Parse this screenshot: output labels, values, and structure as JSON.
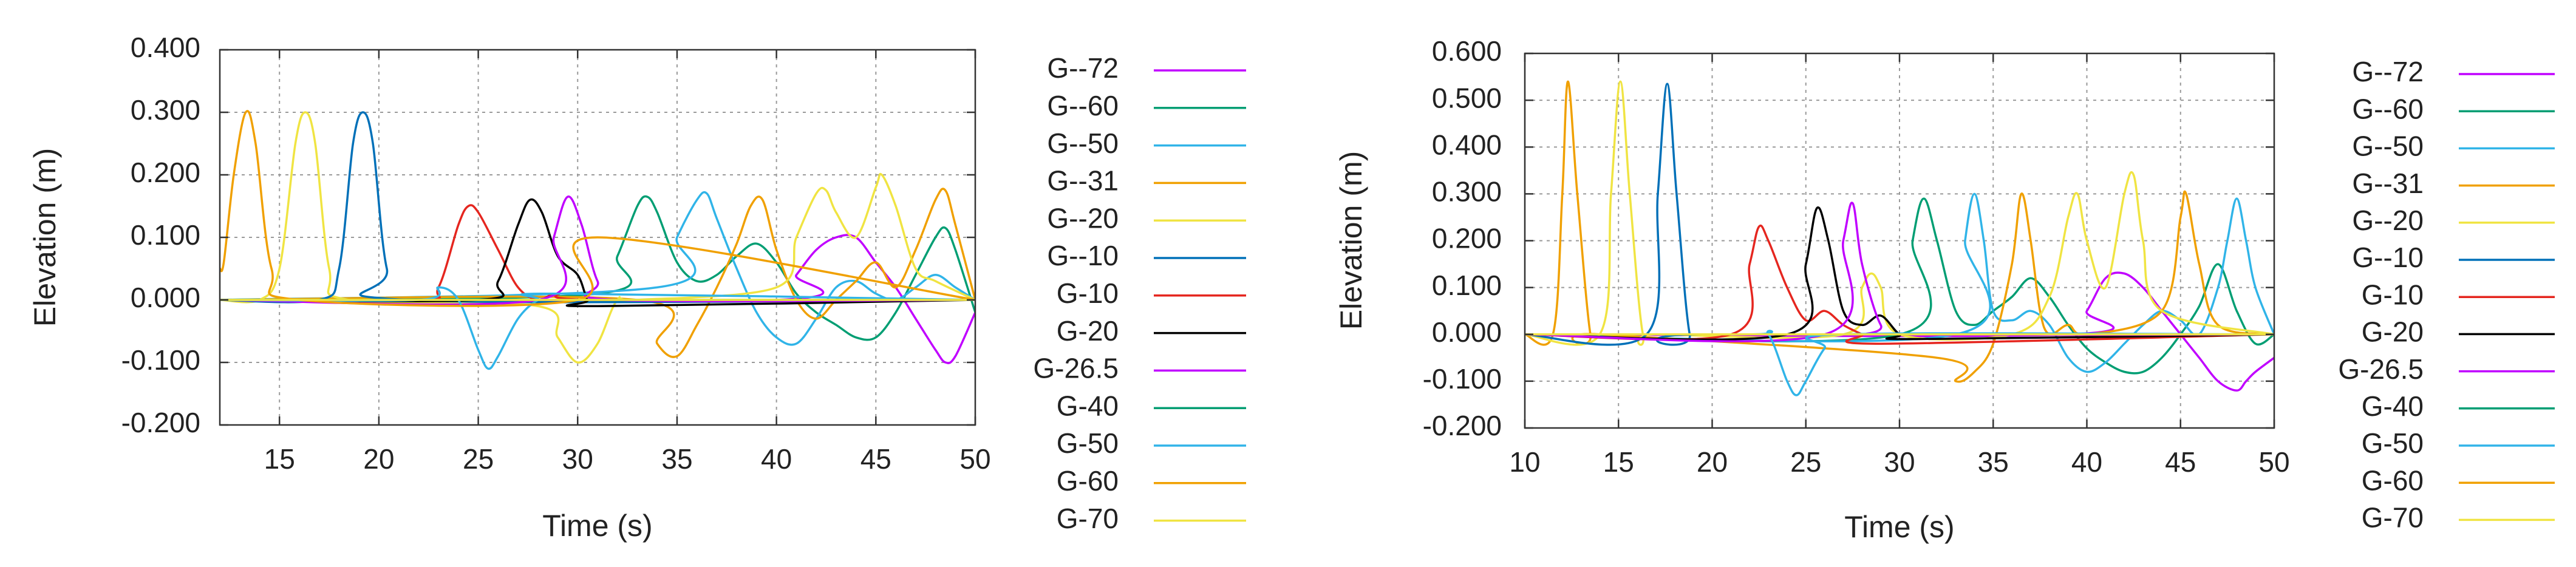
{
  "colors": [
    "#c000ff",
    "#009e73",
    "#30b4e8",
    "#f0a000",
    "#f0e442",
    "#0070b8",
    "#e5261f",
    "#000000"
  ],
  "chart_data": [
    {
      "type": "line",
      "title": "",
      "xlabel": "Time (s)",
      "ylabel": "Elevation (m)",
      "xlim": [
        12,
        50
      ],
      "ylim": [
        -0.2,
        0.4
      ],
      "xticks": [
        15,
        20,
        25,
        30,
        35,
        40,
        45,
        50
      ],
      "xtick_labels": [
        "15",
        "20",
        "25",
        "30",
        "35",
        "40",
        "45",
        "50"
      ],
      "yticks": [
        -0.2,
        -0.1,
        0.0,
        0.1,
        0.2,
        0.3,
        0.4
      ],
      "ytick_labels": [
        "-0.200",
        "-0.100",
        "0.000",
        "0.100",
        "0.200",
        "0.300",
        "0.400"
      ],
      "grid": true,
      "legend_position": "right",
      "series": [
        {
          "name": "G--72",
          "color": "#c000ff",
          "x": [
            12,
            40,
            41,
            42,
            43,
            44,
            45,
            46,
            47,
            48,
            48.5,
            49,
            50
          ],
          "y": [
            0,
            0.0,
            0.04,
            0.08,
            0.1,
            0.1,
            0.06,
            0.02,
            -0.03,
            -0.08,
            -0.1,
            -0.09,
            -0.02
          ]
        },
        {
          "name": "G--60",
          "color": "#009e73",
          "x": [
            12,
            31,
            32,
            33,
            33.5,
            34,
            35,
            36,
            37,
            38,
            39,
            40,
            41,
            42,
            43,
            44,
            45,
            46,
            47,
            48,
            48.5,
            49,
            50
          ],
          "y": [
            0,
            0.01,
            0.07,
            0.15,
            0.165,
            0.14,
            0.06,
            0.03,
            0.04,
            0.07,
            0.09,
            0.06,
            0.01,
            -0.02,
            -0.04,
            -0.06,
            -0.06,
            -0.02,
            0.04,
            0.1,
            0.115,
            0.08,
            -0.02
          ]
        },
        {
          "name": "G--50",
          "color": "#30b4e8",
          "x": [
            12,
            34,
            35,
            36,
            36.5,
            37,
            38,
            39,
            40,
            41,
            42,
            43,
            44,
            45,
            46,
            47,
            48,
            49,
            50
          ],
          "y": [
            0,
            0.02,
            0.1,
            0.16,
            0.17,
            0.13,
            0.05,
            -0.02,
            -0.06,
            -0.07,
            -0.03,
            0.02,
            0.03,
            0.01,
            0.0,
            0.02,
            0.04,
            0.02,
            0.0
          ]
        },
        {
          "name": "G--31",
          "color": "#f0a000",
          "x": [
            12,
            33,
            34,
            35,
            36,
            37,
            38,
            38.7,
            39.3,
            40,
            41,
            42,
            43,
            44,
            45,
            46,
            47,
            48,
            48.5,
            49,
            50
          ],
          "y": [
            0,
            0.0,
            -0.07,
            -0.09,
            -0.04,
            0.02,
            0.09,
            0.15,
            0.16,
            0.08,
            0.0,
            -0.03,
            0.0,
            0.03,
            0.06,
            0.02,
            0.08,
            0.16,
            0.175,
            0.12,
            0.0
          ]
        },
        {
          "name": "G--20",
          "color": "#f0e442",
          "x": [
            12,
            14,
            15,
            15.8,
            16.3,
            16.8,
            17.5,
            18.5,
            28,
            29,
            30,
            31,
            32,
            33,
            40,
            41,
            42,
            42.5,
            43,
            44,
            45,
            45.3,
            46,
            47,
            48,
            50
          ],
          "y": [
            0,
            0.0,
            0.05,
            0.25,
            0.3,
            0.25,
            0.05,
            0.0,
            -0.01,
            -0.06,
            -0.1,
            -0.07,
            0.0,
            0.0,
            0.02,
            0.1,
            0.17,
            0.175,
            0.14,
            0.1,
            0.18,
            0.2,
            0.15,
            0.05,
            0.03,
            0.0
          ]
        },
        {
          "name": "G--10",
          "color": "#0070b8",
          "x": [
            12,
            17,
            18,
            18.7,
            19.2,
            19.7,
            20.4,
            21.5,
            50
          ],
          "y": [
            0,
            0.0,
            0.05,
            0.25,
            0.3,
            0.25,
            0.05,
            0.0,
            0.0
          ]
        },
        {
          "name": "G-10",
          "color": "#e5261f",
          "x": [
            12,
            22,
            23,
            24,
            24.5,
            25,
            26,
            27,
            28,
            29,
            31,
            50
          ],
          "y": [
            0,
            0.0,
            0.02,
            0.12,
            0.15,
            0.14,
            0.08,
            0.02,
            0.0,
            0.01,
            0.0,
            0.0
          ]
        },
        {
          "name": "G-20",
          "color": "#000000",
          "x": [
            12,
            25,
            26,
            27,
            27.6,
            28.2,
            29,
            30,
            30.5,
            31,
            50
          ],
          "y": [
            0,
            0.0,
            0.03,
            0.12,
            0.16,
            0.14,
            0.07,
            0.04,
            0.0,
            -0.01,
            0.0
          ]
        },
        {
          "name": "G-26.5",
          "color": "#c000ff",
          "x": [
            12,
            28,
            28.8,
            29.5,
            30.2,
            31,
            32,
            50
          ],
          "y": [
            0,
            0.0,
            0.1,
            0.165,
            0.12,
            0.03,
            0.0,
            0.0
          ]
        },
        {
          "name": "G-40",
          "color": "#009e73",
          "x": [
            12,
            34,
            50
          ],
          "y": [
            0,
            0.0,
            0.0
          ]
        },
        {
          "name": "G-50",
          "color": "#30b4e8",
          "x": [
            12,
            22,
            23,
            24,
            25,
            25.5,
            26,
            27,
            28,
            29,
            50
          ],
          "y": [
            0,
            0.0,
            0.02,
            0.0,
            -0.08,
            -0.11,
            -0.09,
            -0.03,
            0.0,
            0.01,
            0.0
          ]
        },
        {
          "name": "G-60",
          "color": "#f0a000",
          "x": [
            12,
            12.2,
            12.7,
            13.3,
            13.8,
            14.6,
            16,
            30,
            31,
            50
          ],
          "y": [
            0.05,
            0.06,
            0.2,
            0.3,
            0.25,
            0.05,
            0.0,
            0.0,
            0.1,
            0.0
          ]
        },
        {
          "name": "G-70",
          "color": "#f0e442",
          "x": [
            12,
            50
          ],
          "y": [
            0,
            0.0
          ]
        }
      ]
    },
    {
      "type": "line",
      "title": "",
      "xlabel": "Time (s)",
      "ylabel": "Elevation (m)",
      "xlim": [
        10,
        50
      ],
      "ylim": [
        -0.2,
        0.6
      ],
      "xticks": [
        10,
        15,
        20,
        25,
        30,
        35,
        40,
        45,
        50
      ],
      "xtick_labels": [
        "10",
        "15",
        "20",
        "25",
        "30",
        "35",
        "40",
        "45",
        "50"
      ],
      "yticks": [
        -0.2,
        -0.1,
        0.0,
        0.1,
        0.2,
        0.3,
        0.4,
        0.5,
        0.6
      ],
      "ytick_labels": [
        "-0.200",
        "-0.100",
        "0.000",
        "0.100",
        "0.200",
        "0.300",
        "0.400",
        "0.500",
        "0.600"
      ],
      "grid": true,
      "legend_position": "right",
      "series": [
        {
          "name": "G--72",
          "color": "#c000ff",
          "x": [
            10,
            39,
            40,
            41,
            42,
            43,
            44,
            45,
            46,
            47,
            48,
            48.5,
            49,
            50
          ],
          "y": [
            0,
            0.0,
            0.05,
            0.12,
            0.13,
            0.1,
            0.05,
            0.0,
            -0.05,
            -0.1,
            -0.12,
            -0.1,
            -0.08,
            -0.05
          ]
        },
        {
          "name": "G--60",
          "color": "#009e73",
          "x": [
            10,
            30,
            30.7,
            31.3,
            32,
            33,
            34,
            35,
            36,
            37,
            38,
            39,
            40,
            41,
            42,
            43,
            44,
            45,
            46,
            47,
            48,
            49,
            50
          ],
          "y": [
            0,
            0.0,
            0.2,
            0.29,
            0.2,
            0.05,
            0.02,
            0.05,
            0.08,
            0.12,
            0.08,
            0.02,
            -0.03,
            -0.06,
            -0.08,
            -0.08,
            -0.05,
            0.0,
            0.06,
            0.15,
            0.05,
            -0.02,
            0.0
          ]
        },
        {
          "name": "G--50",
          "color": "#30b4e8",
          "x": [
            10,
            33,
            33.5,
            34,
            34.5,
            35,
            36,
            37,
            38,
            39,
            40,
            41,
            42,
            43,
            44,
            45,
            46,
            47,
            47.5,
            48,
            48.5,
            49,
            50
          ],
          "y": [
            0,
            0.0,
            0.2,
            0.3,
            0.2,
            0.05,
            0.03,
            0.05,
            0.02,
            -0.05,
            -0.08,
            -0.06,
            -0.02,
            0.02,
            0.05,
            0.03,
            0.0,
            0.1,
            0.2,
            0.29,
            0.2,
            0.1,
            0.0
          ]
        },
        {
          "name": "G--31",
          "color": "#f0a000",
          "x": [
            10,
            11.5,
            12,
            12.3,
            12.8,
            13.5,
            14,
            32,
            33,
            34,
            35,
            36,
            36.5,
            37,
            37.5,
            38,
            39,
            40,
            44,
            45,
            45.3,
            46,
            47,
            50
          ],
          "y": [
            0,
            0.0,
            0.3,
            0.54,
            0.3,
            0.0,
            0.0,
            -0.05,
            -0.1,
            -0.08,
            -0.02,
            0.15,
            0.3,
            0.2,
            0.05,
            0.0,
            0.02,
            0.0,
            0.05,
            0.25,
            0.3,
            0.15,
            0.02,
            0.0
          ]
        },
        {
          "name": "G--20",
          "color": "#f0e442",
          "x": [
            10,
            14,
            14.6,
            15.1,
            15.6,
            16.3,
            17,
            27,
            28,
            28.5,
            29,
            30,
            36,
            38,
            39,
            39.5,
            40,
            41,
            42,
            42.5,
            43,
            44,
            50
          ],
          "y": [
            0,
            0.0,
            0.3,
            0.54,
            0.3,
            0.0,
            0.0,
            0.0,
            0.1,
            0.13,
            0.1,
            0.0,
            0.0,
            0.08,
            0.25,
            0.3,
            0.2,
            0.1,
            0.3,
            0.34,
            0.2,
            0.05,
            0.0
          ]
        },
        {
          "name": "G--10",
          "color": "#0070b8",
          "x": [
            10,
            16.5,
            17.1,
            17.6,
            18.1,
            18.8,
            19.5,
            50
          ],
          "y": [
            0,
            0.0,
            0.3,
            0.535,
            0.3,
            0.0,
            0.0,
            0.0
          ]
        },
        {
          "name": "G-10",
          "color": "#e5261f",
          "x": [
            10,
            21,
            22,
            22.5,
            23,
            24,
            25,
            26,
            27,
            28,
            29,
            50
          ],
          "y": [
            0,
            0.0,
            0.15,
            0.23,
            0.2,
            0.1,
            0.03,
            0.05,
            0.02,
            0.0,
            -0.02,
            0.0
          ]
        },
        {
          "name": "G-20",
          "color": "#000000",
          "x": [
            10,
            24,
            25,
            25.6,
            26.2,
            27,
            28,
            29,
            30,
            31,
            50
          ],
          "y": [
            0,
            0.0,
            0.15,
            0.27,
            0.2,
            0.05,
            0.02,
            0.04,
            0.0,
            -0.01,
            0.0
          ]
        },
        {
          "name": "G-26.5",
          "color": "#c000ff",
          "x": [
            10,
            26,
            27,
            27.5,
            28,
            29,
            30,
            50
          ],
          "y": [
            0,
            0.0,
            0.2,
            0.28,
            0.15,
            0.02,
            0.0,
            0.0
          ]
        },
        {
          "name": "G-40",
          "color": "#009e73",
          "x": [
            10,
            34,
            50
          ],
          "y": [
            0,
            0.0,
            0.0
          ]
        },
        {
          "name": "G-50",
          "color": "#30b4e8",
          "x": [
            10,
            22,
            23,
            24,
            24.5,
            25,
            26,
            27,
            50
          ],
          "y": [
            0,
            0.0,
            0.0,
            -0.1,
            -0.13,
            -0.1,
            -0.03,
            0.0,
            0.0
          ]
        },
        {
          "name": "G-60",
          "color": "#f0a000",
          "x": [
            10,
            50
          ],
          "y": [
            0,
            0.0
          ]
        },
        {
          "name": "G-70",
          "color": "#f0e442",
          "x": [
            10,
            50
          ],
          "y": [
            0,
            0.0
          ]
        }
      ]
    }
  ]
}
